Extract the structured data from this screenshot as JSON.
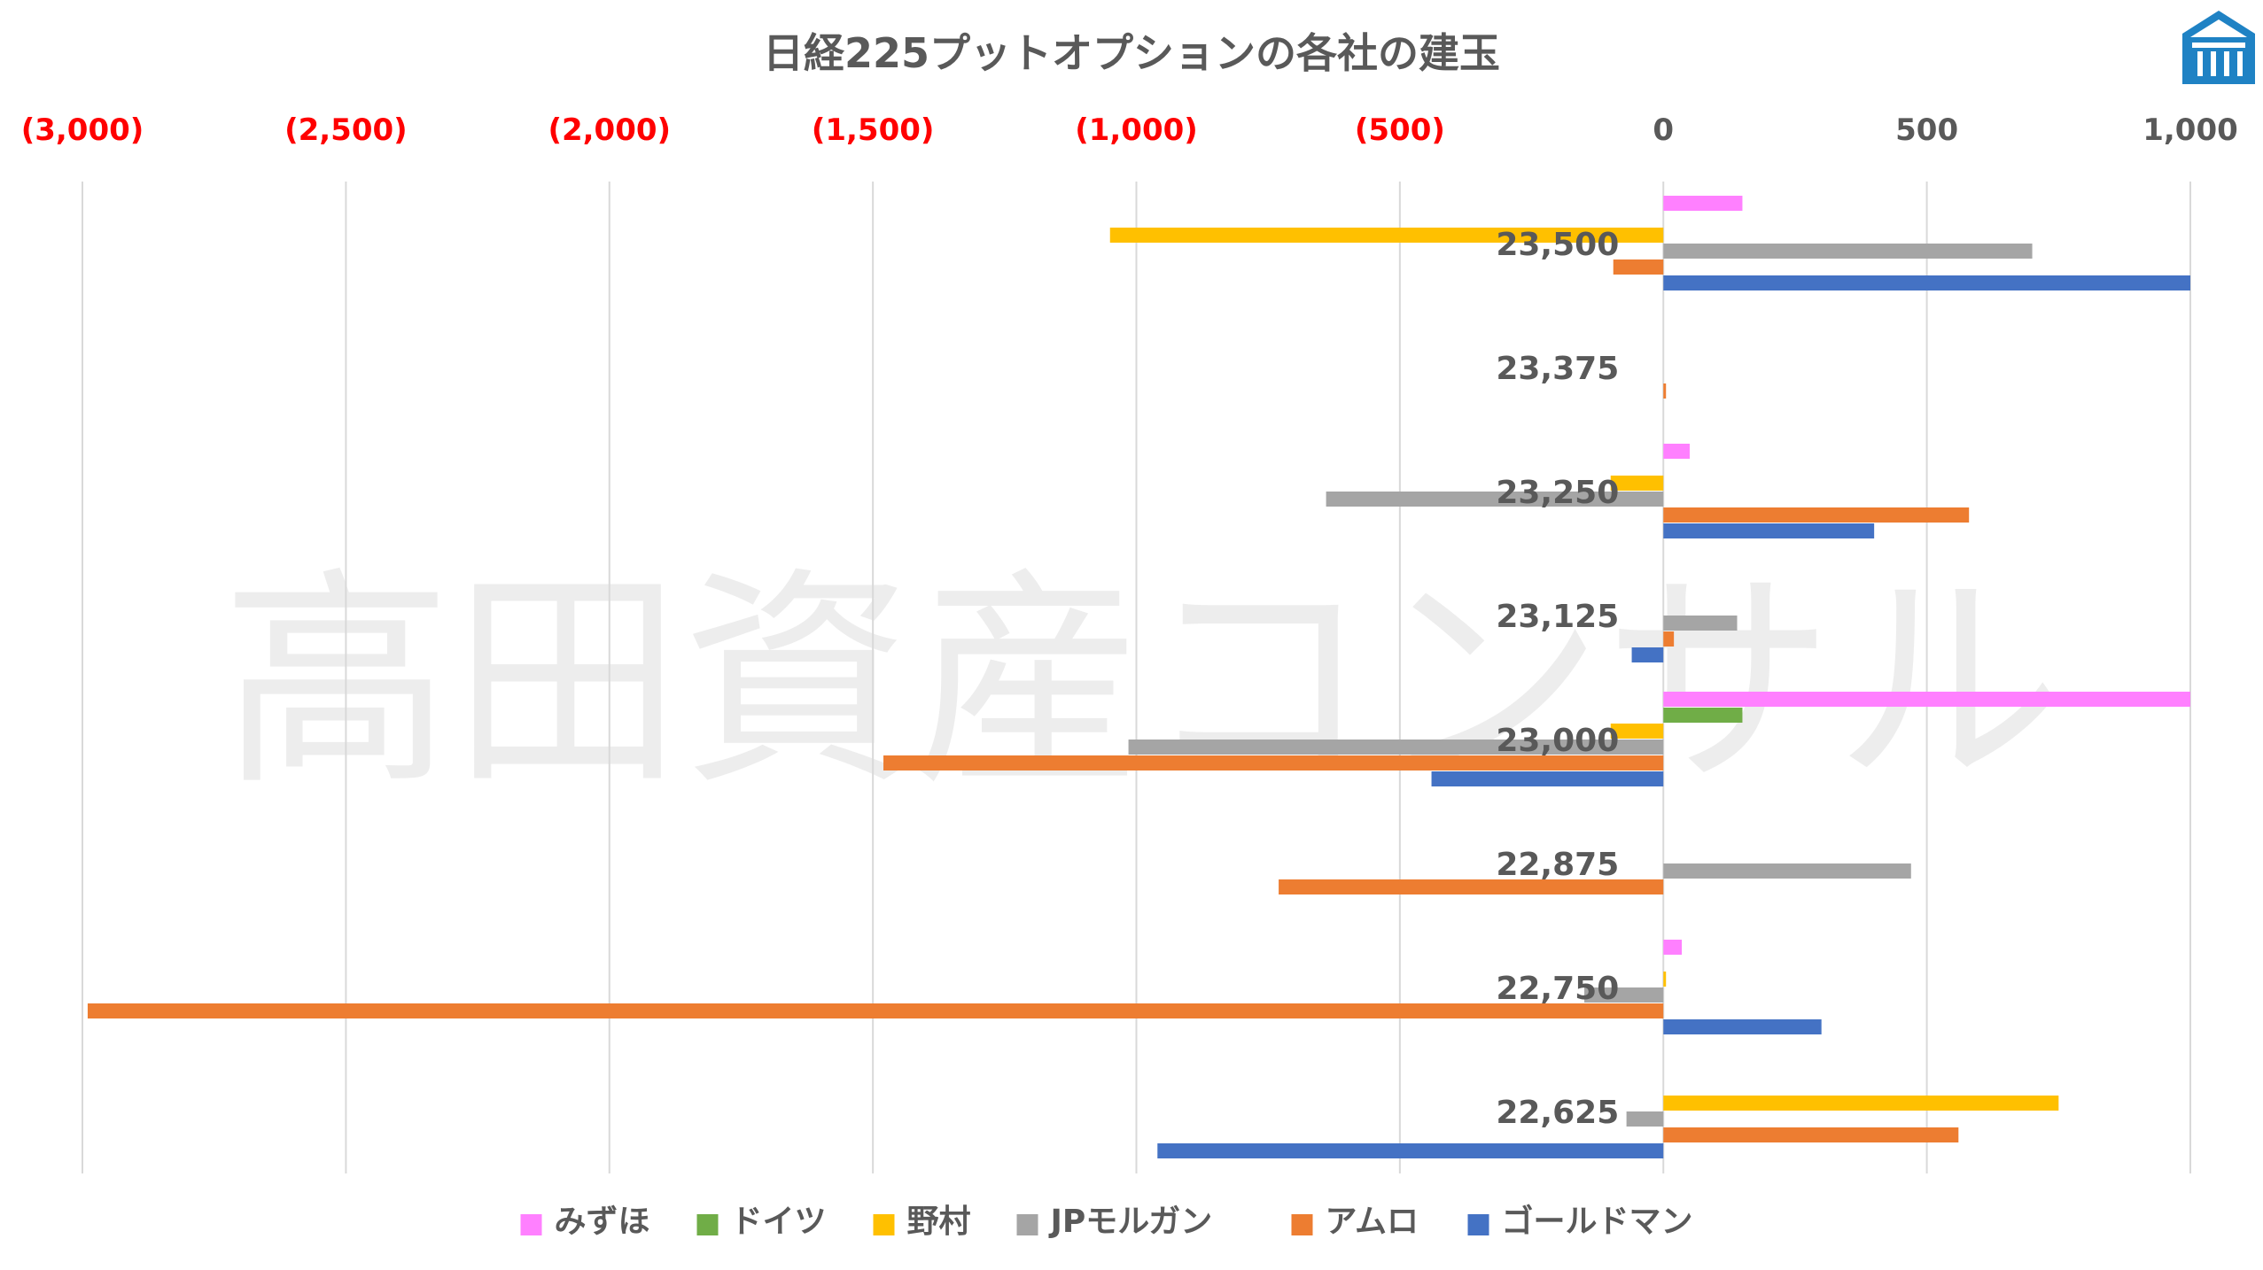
{
  "chart_data": {
    "type": "bar",
    "orientation": "horizontal",
    "title": "日経225プットオプションの各社の建玉",
    "categories": [
      "23,500",
      "23,375",
      "23,250",
      "23,125",
      "23,000",
      "22,875",
      "22,750",
      "22,625"
    ],
    "xlim": [
      -3000,
      1000
    ],
    "x_ticks": [
      -3000,
      -2500,
      -2000,
      -1500,
      -1000,
      -500,
      0,
      500,
      1000
    ],
    "x_tick_labels": [
      "(3,000)",
      "(2,500)",
      "(2,000)",
      "(1,500)",
      "(1,000)",
      "(500)",
      "0",
      "500",
      "1,000"
    ],
    "axis_position": "top",
    "negative_tick_color": "#ff0000",
    "positive_tick_color": "#595959",
    "grid": true,
    "legend_position": "bottom",
    "series": [
      {
        "name": "みずほ",
        "color": "#ff80ff",
        "values": [
          150,
          0,
          50,
          0,
          1000,
          0,
          35,
          0
        ]
      },
      {
        "name": "ドイツ",
        "color": "#70ad47",
        "values": [
          0,
          0,
          0,
          0,
          150,
          0,
          0,
          0
        ]
      },
      {
        "name": "野村",
        "color": "#ffc000",
        "values": [
          -1050,
          0,
          -100,
          0,
          -100,
          0,
          5,
          750
        ]
      },
      {
        "name": "JPモルガン",
        "color": "#a5a5a5",
        "values": [
          700,
          0,
          -640,
          140,
          -1015,
          470,
          -150,
          -70
        ]
      },
      {
        "name": "アムロ",
        "color": "#ed7d31",
        "values": [
          -95,
          5,
          580,
          20,
          -1480,
          -730,
          -2990,
          560
        ]
      },
      {
        "name": "ゴールドマン",
        "color": "#4472c4",
        "values": [
          1000,
          0,
          400,
          -60,
          -440,
          0,
          300,
          -960
        ]
      }
    ]
  },
  "watermark": {
    "text": "高田資産コンサル"
  },
  "logo": {
    "icon": "house-logo-icon",
    "color": "#1f82c4"
  }
}
